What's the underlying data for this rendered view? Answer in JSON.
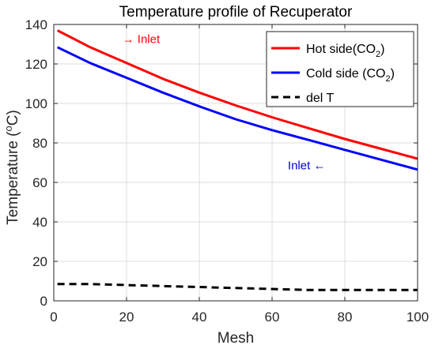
{
  "chart_data": {
    "type": "line",
    "title": "Temperature profile of Recuperator",
    "xlabel": "Mesh",
    "ylabel": "Temperature ( oC)",
    "ylabel_parts": {
      "before": "Temperature (",
      "superscript": "o",
      "after": "C)"
    },
    "xlim": [
      0,
      100
    ],
    "ylim": [
      0,
      140
    ],
    "xticks": [
      0,
      20,
      40,
      60,
      80,
      100
    ],
    "yticks": [
      0,
      20,
      40,
      60,
      80,
      100,
      120,
      140
    ],
    "grid": true,
    "legend_position": "top-right",
    "x": [
      1,
      10,
      20,
      30,
      40,
      50,
      60,
      70,
      80,
      90,
      100
    ],
    "series": [
      {
        "name": "Hot side(CO2)",
        "name_parts": {
          "before": "Hot side(CO",
          "subscript": "2",
          "after": ")"
        },
        "color": "#ff0000",
        "dash": "solid",
        "values": [
          137,
          128.5,
          120.5,
          112.5,
          105.5,
          99,
          93,
          87.5,
          82,
          77,
          72
        ]
      },
      {
        "name": "Cold side (CO2)",
        "name_parts": {
          "before": "Cold side (CO",
          "subscript": "2",
          "after": ")"
        },
        "color": "#0000ff",
        "dash": "solid",
        "values": [
          128.5,
          120.5,
          113,
          105.5,
          98.5,
          92,
          86.5,
          81.5,
          76.5,
          71.5,
          66.5
        ]
      },
      {
        "name": "del T",
        "name_parts": {
          "before": "del T",
          "subscript": "",
          "after": ""
        },
        "color": "#000000",
        "dash": "dashed",
        "values": [
          8.5,
          8.5,
          8,
          7.5,
          7,
          6.5,
          6,
          5.5,
          5.5,
          5.5,
          5.5
        ]
      }
    ],
    "annotations": [
      {
        "text": "→ Inlet",
        "color": "#ff0000",
        "x": 24,
        "y": 133
      },
      {
        "text": "Inlet ←",
        "color": "#0000cc",
        "x": 69.5,
        "y": 69
      }
    ]
  }
}
